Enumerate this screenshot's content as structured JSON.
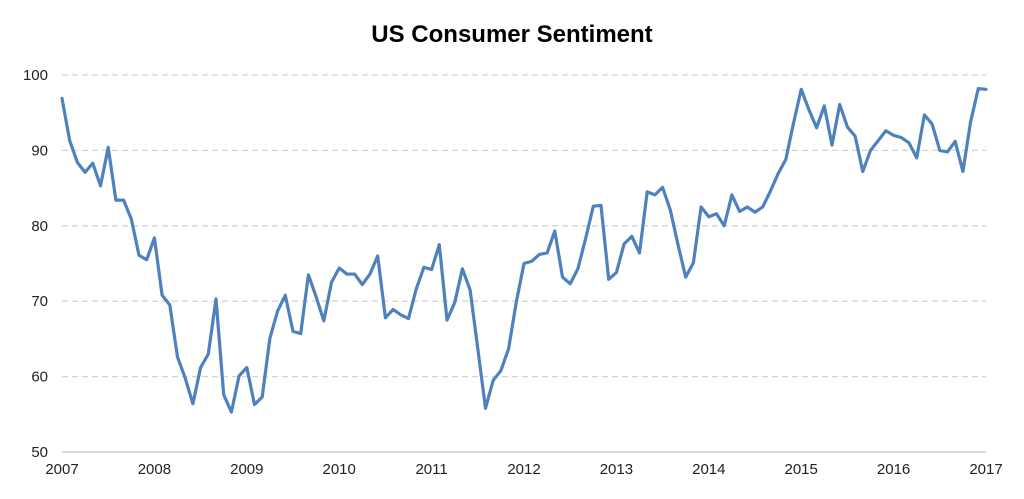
{
  "chart_data": {
    "type": "line",
    "title": "US Consumer Sentiment",
    "xlabel": "",
    "ylabel": "",
    "xlim": [
      2007,
      2017
    ],
    "ylim": [
      50,
      100
    ],
    "yticks": [
      50,
      60,
      70,
      80,
      90,
      100
    ],
    "xticks": [
      2007,
      2008,
      2009,
      2010,
      2011,
      2012,
      2013,
      2014,
      2015,
      2016,
      2017
    ],
    "grid": "horizontal dashed",
    "legend": "none",
    "colors": {
      "series": "#4f81bd",
      "gridline": "#d4d4d4",
      "axis": "#bfbfbf"
    },
    "series": [
      {
        "name": "US Consumer Sentiment",
        "values": [
          96.9,
          91.3,
          88.4,
          87.1,
          88.3,
          85.3,
          90.4,
          83.4,
          83.4,
          80.9,
          76.1,
          75.5,
          78.4,
          70.8,
          69.5,
          62.6,
          59.8,
          56.4,
          61.2,
          63.0,
          70.3,
          57.6,
          55.3,
          60.1,
          61.2,
          56.3,
          57.3,
          65.1,
          68.7,
          70.8,
          66.0,
          65.7,
          73.5,
          70.6,
          67.4,
          72.5,
          74.4,
          73.6,
          73.6,
          72.2,
          73.6,
          76.0,
          67.8,
          68.9,
          68.2,
          67.7,
          71.6,
          74.5,
          74.2,
          77.5,
          67.5,
          69.8,
          74.3,
          71.5,
          63.7,
          55.8,
          59.5,
          60.8,
          63.7,
          69.9,
          75.0,
          75.3,
          76.2,
          76.4,
          79.3,
          73.2,
          72.3,
          74.3,
          78.3,
          82.6,
          82.7,
          72.9,
          73.8,
          77.6,
          78.6,
          76.4,
          84.5,
          84.1,
          85.1,
          82.1,
          77.5,
          73.2,
          75.1,
          82.5,
          81.2,
          81.6,
          80.0,
          84.1,
          81.9,
          82.5,
          81.8,
          82.5,
          84.6,
          86.9,
          88.8,
          93.6,
          98.1,
          95.4,
          93.0,
          95.9,
          90.7,
          96.1,
          93.1,
          91.9,
          87.2,
          90.0,
          91.3,
          92.6,
          92.0,
          91.7,
          91.0,
          89.0,
          94.7,
          93.5,
          90.0,
          89.8,
          91.2,
          87.2,
          93.8,
          98.2,
          98.1
        ]
      }
    ]
  }
}
